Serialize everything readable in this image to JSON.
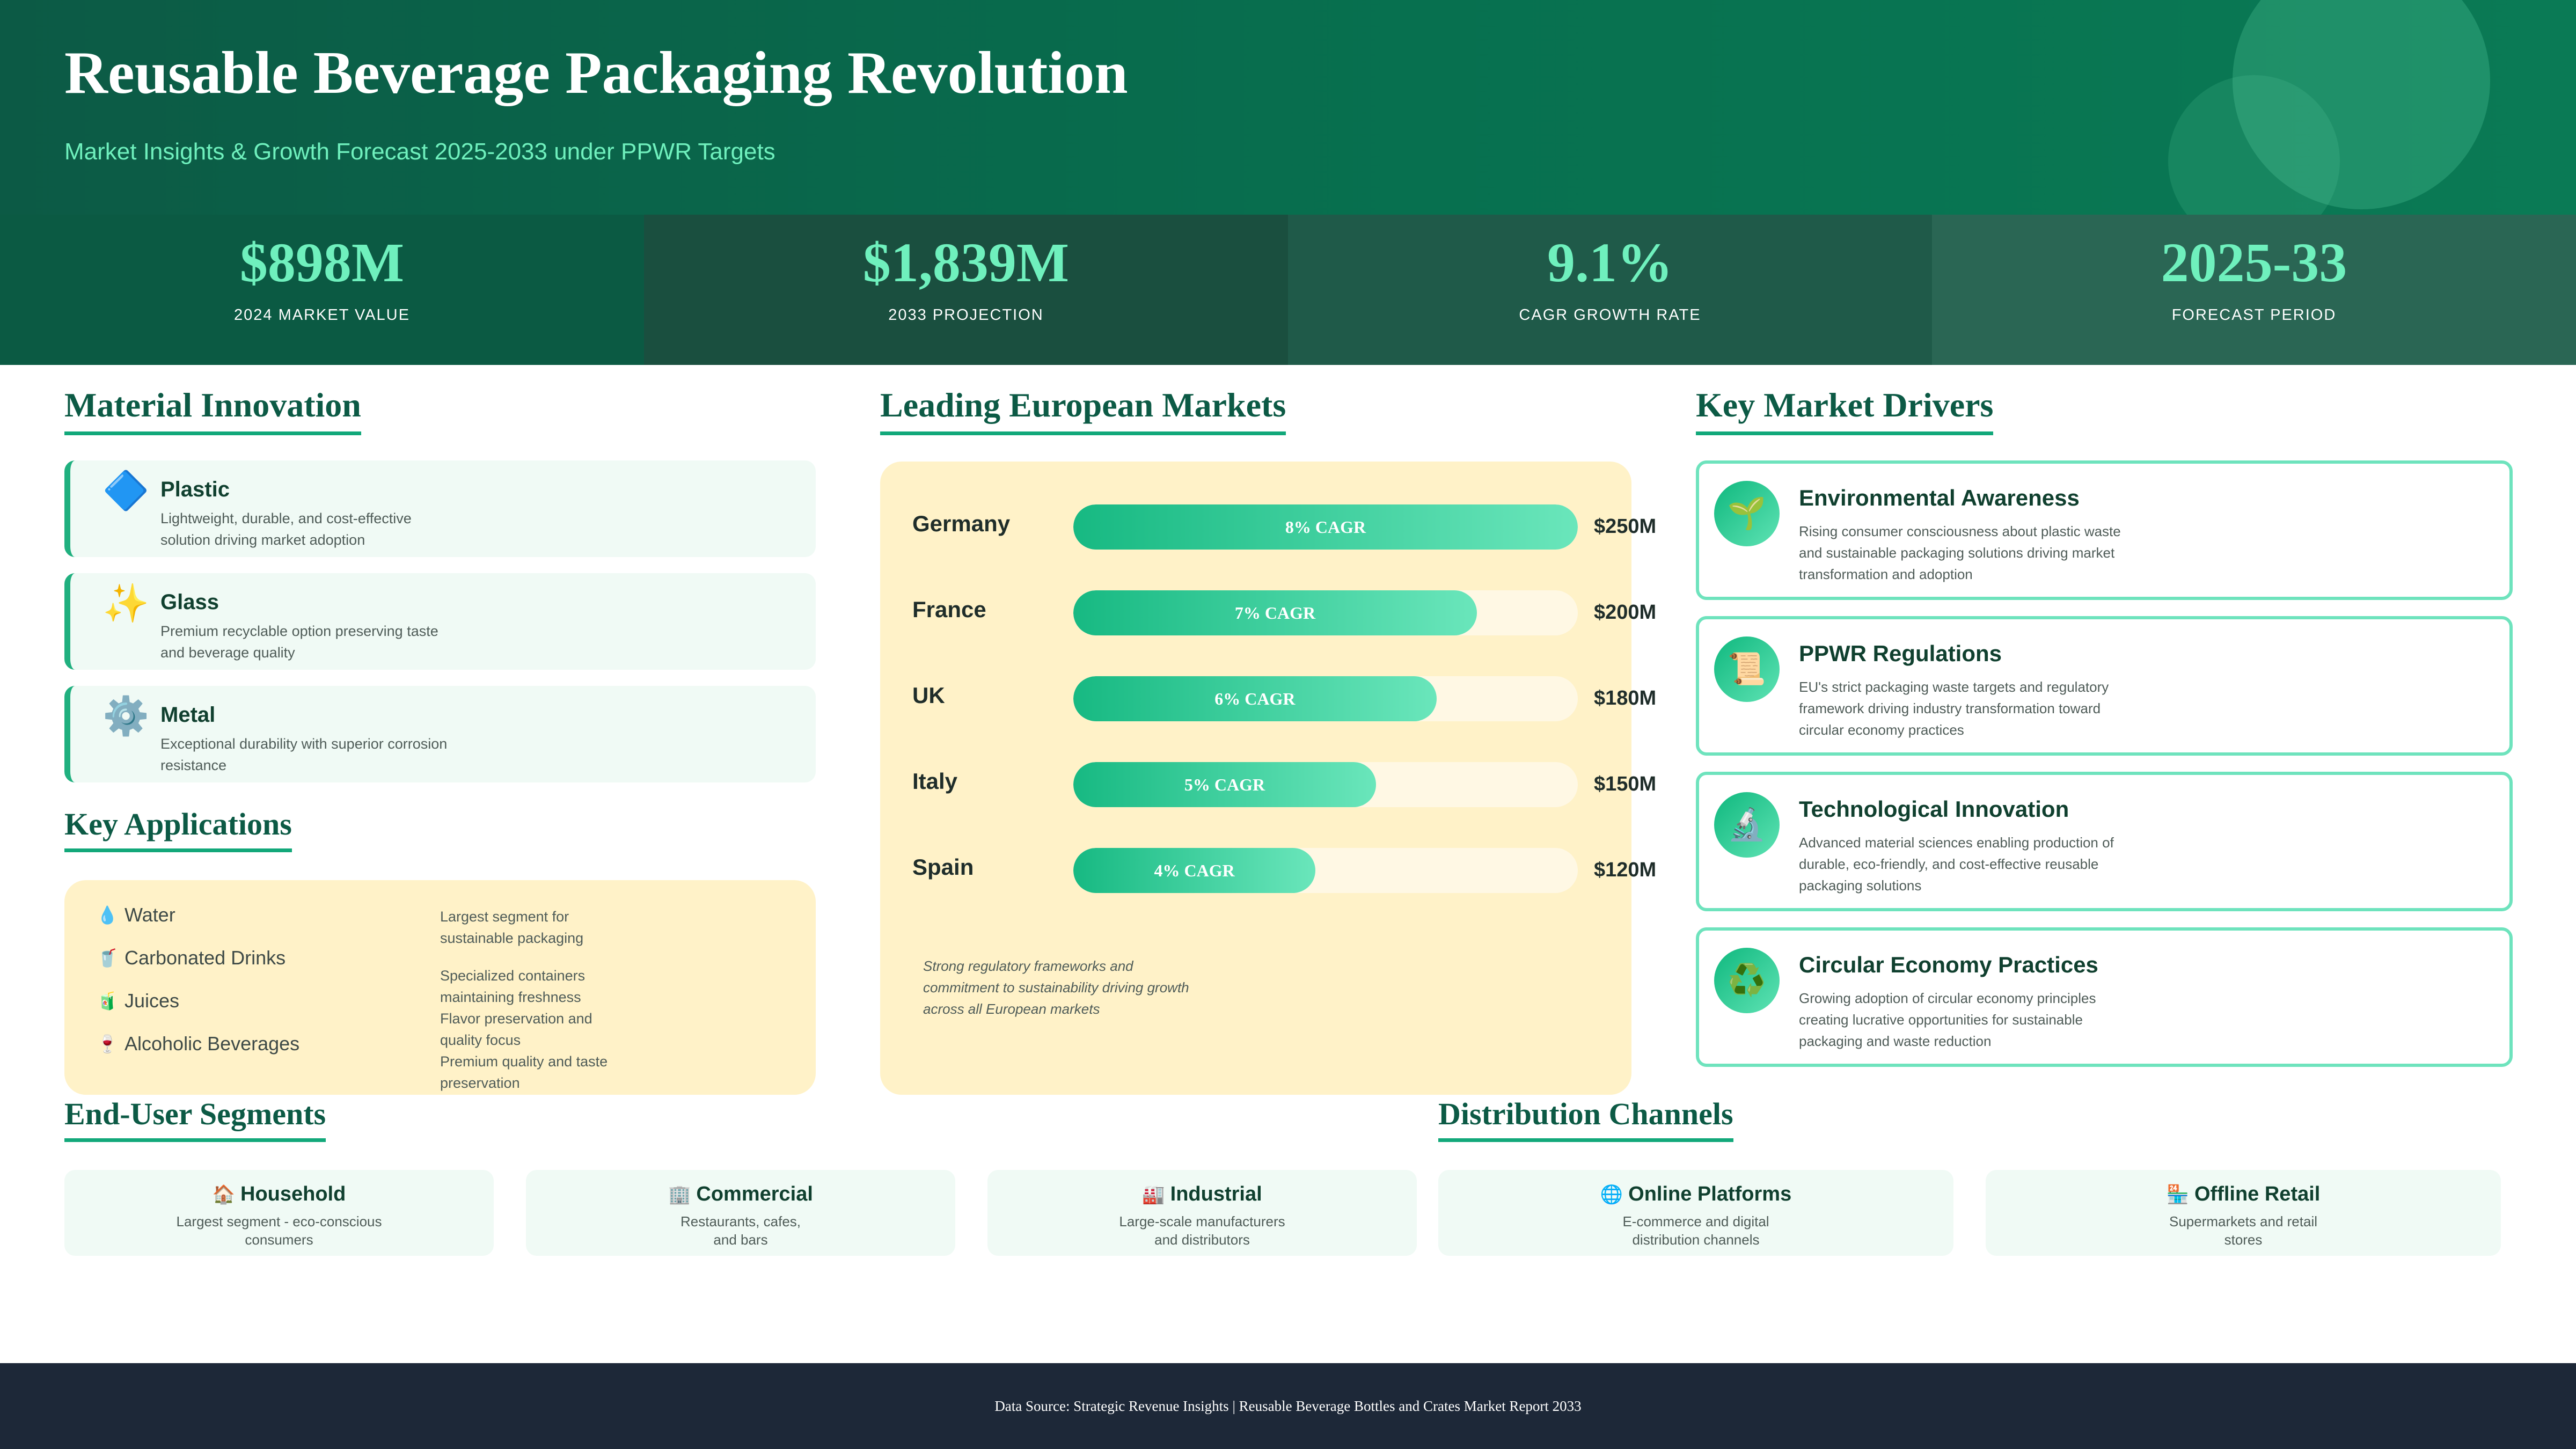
{
  "header": {
    "title": "Reusable Beverage Packaging Revolution",
    "subtitle": "Market Insights & Growth Forecast 2025-2033 under PPWR Targets"
  },
  "stats": [
    {
      "value": "$898M",
      "label": "2024 MARKET VALUE",
      "bg": "#0b5a43"
    },
    {
      "value": "$1,839M",
      "label": "2033 PROJECTION",
      "bg": "#1a4f3f"
    },
    {
      "value": "9.1%",
      "label": "CAGR GROWTH RATE",
      "bg": "#1f5a49"
    },
    {
      "value": "2025-33",
      "label": "FORECAST PERIOD",
      "bg": "#2a6654"
    }
  ],
  "material": {
    "title": "Material Innovation",
    "items": [
      {
        "icon": "blue-diamond-icon",
        "glyph": "🔷",
        "name": "Plastic",
        "desc": "Lightweight, durable, and cost-effective solution driving market adoption"
      },
      {
        "icon": "sparkles-icon",
        "glyph": "✨",
        "name": "Glass",
        "desc": "Premium recyclable option preserving taste and beverage quality"
      },
      {
        "icon": "gear-icon",
        "glyph": "⚙️",
        "name": "Metal",
        "desc": "Exceptional durability with superior corrosion resistance"
      }
    ]
  },
  "applications": {
    "title": "Key Applications",
    "items": [
      {
        "icon": "droplet-icon",
        "glyph": "💧",
        "label": "Water"
      },
      {
        "icon": "cup-icon",
        "glyph": "🥤",
        "label": "Carbonated Drinks"
      },
      {
        "icon": "juice-box-icon",
        "glyph": "🧃",
        "label": "Juices"
      },
      {
        "icon": "wine-glass-icon",
        "glyph": "🍷",
        "label": "Alcoholic Beverages"
      }
    ],
    "descriptions": [
      "Largest segment for sustainable packaging",
      "Specialized containers maintaining freshness",
      "Flavor preservation and quality focus",
      "Premium quality and taste preservation"
    ]
  },
  "markets": {
    "title": "Leading European Markets",
    "note": "Strong regulatory frameworks and commitment to sustainability driving growth across all European markets",
    "items": [
      {
        "country": "Germany",
        "cagr": "8% CAGR",
        "value": "$250M",
        "share": 1.0
      },
      {
        "country": "France",
        "cagr": "7% CAGR",
        "value": "$200M",
        "share": 0.8
      },
      {
        "country": "UK",
        "cagr": "6% CAGR",
        "value": "$180M",
        "share": 0.72
      },
      {
        "country": "Italy",
        "cagr": "5% CAGR",
        "value": "$150M",
        "share": 0.6
      },
      {
        "country": "Spain",
        "cagr": "4% CAGR",
        "value": "$120M",
        "share": 0.48
      }
    ]
  },
  "drivers": {
    "title": "Key Market Drivers",
    "items": [
      {
        "icon": "seedling-icon",
        "glyph": "🌱",
        "name": "Environmental Awareness",
        "desc": "Rising consumer consciousness about plastic waste and sustainable packaging solutions driving market transformation and adoption"
      },
      {
        "icon": "scroll-icon",
        "glyph": "📜",
        "name": "PPWR Regulations",
        "desc": "EU's strict packaging waste targets and regulatory framework driving industry transformation toward circular economy practices"
      },
      {
        "icon": "microscope-icon",
        "glyph": "🔬",
        "name": "Technological Innovation",
        "desc": "Advanced material sciences enabling production of durable, eco-friendly, and cost-effective reusable packaging solutions"
      },
      {
        "icon": "recycle-icon",
        "glyph": "♻️",
        "name": "Circular Economy Practices",
        "desc": "Growing adoption of circular economy principles creating lucrative opportunities for sustainable packaging and waste reduction"
      }
    ]
  },
  "segments": {
    "title": "End-User Segments",
    "items": [
      {
        "icon": "house-icon",
        "glyph": "🏠",
        "name": "Household",
        "desc": "Largest segment - eco-conscious consumers"
      },
      {
        "icon": "office-building-icon",
        "glyph": "🏢",
        "name": "Commercial",
        "desc": "Restaurants, cafes, and bars"
      },
      {
        "icon": "factory-icon",
        "glyph": "🏭",
        "name": "Industrial",
        "desc": "Large-scale manufacturers and distributors"
      }
    ]
  },
  "channels": {
    "title": "Distribution Channels",
    "items": [
      {
        "icon": "globe-icon",
        "glyph": "🌐",
        "name": "Online Platforms",
        "desc": "E-commerce and digital distribution channels"
      },
      {
        "icon": "store-icon",
        "glyph": "🏪",
        "name": "Offline Retail",
        "desc": "Supermarkets and retail stores"
      }
    ]
  },
  "footer": {
    "text": "Data Source: Strategic Revenue Insights | Reusable Beverage Bottles and Crates Market Report 2033"
  }
}
